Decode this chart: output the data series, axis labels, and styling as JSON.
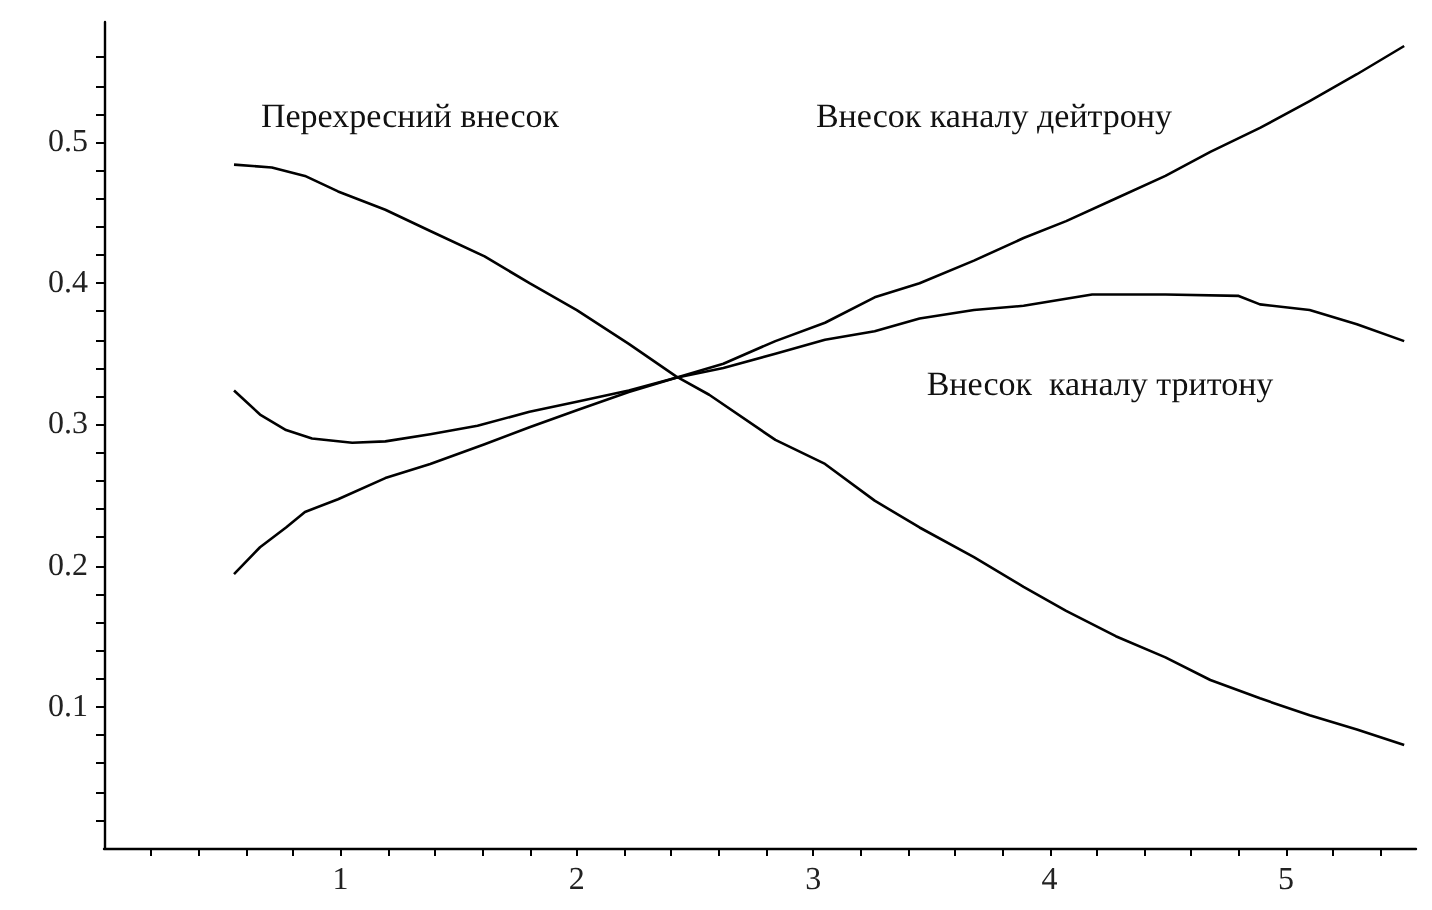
{
  "chart_data": {
    "type": "line",
    "xlim": [
      0,
      5.55
    ],
    "ylim": [
      0,
      0.585
    ],
    "xticks": [
      {
        "value": 0.2,
        "label": null
      },
      {
        "value": 0.4,
        "label": null
      },
      {
        "value": 0.6,
        "label": null
      },
      {
        "value": 0.8,
        "label": null
      },
      1,
      {
        "value": 1.2,
        "label": null
      },
      {
        "value": 1.4,
        "label": null
      },
      {
        "value": 1.6,
        "label": null
      },
      {
        "value": 1.8,
        "label": null
      },
      2,
      {
        "value": 2.2,
        "label": null
      },
      {
        "value": 2.4,
        "label": null
      },
      {
        "value": 2.6,
        "label": null
      },
      {
        "value": 2.8,
        "label": null
      },
      3,
      {
        "value": 3.2,
        "label": null
      },
      {
        "value": 3.4,
        "label": null
      },
      {
        "value": 3.6,
        "label": null
      },
      {
        "value": 3.8,
        "label": null
      },
      4,
      {
        "value": 4.2,
        "label": null
      },
      {
        "value": 4.4,
        "label": null
      },
      {
        "value": 4.6,
        "label": null
      },
      {
        "value": 4.8,
        "label": null
      },
      5,
      {
        "value": 5.2,
        "label": null
      },
      {
        "value": 5.4,
        "label": null
      }
    ],
    "yticks": [
      {
        "value": 0.02,
        "label": null
      },
      {
        "value": 0.04,
        "label": null
      },
      {
        "value": 0.06,
        "label": null
      },
      {
        "value": 0.08,
        "label": null
      },
      0.1,
      {
        "value": 0.12,
        "label": null
      },
      {
        "value": 0.14,
        "label": null
      },
      {
        "value": 0.16,
        "label": null
      },
      {
        "value": 0.18,
        "label": null
      },
      0.2,
      {
        "value": 0.22,
        "label": null
      },
      {
        "value": 0.24,
        "label": null
      },
      {
        "value": 0.26,
        "label": null
      },
      {
        "value": 0.28,
        "label": null
      },
      0.3,
      {
        "value": 0.32,
        "label": null
      },
      {
        "value": 0.34,
        "label": null
      },
      {
        "value": 0.36,
        "label": null
      },
      {
        "value": 0.38,
        "label": null
      },
      0.4,
      {
        "value": 0.42,
        "label": null
      },
      {
        "value": 0.44,
        "label": null
      },
      {
        "value": 0.46,
        "label": null
      },
      {
        "value": 0.48,
        "label": null
      },
      0.5,
      {
        "value": 0.52,
        "label": null
      },
      {
        "value": 0.54,
        "label": null
      },
      {
        "value": 0.56,
        "label": null
      }
    ],
    "line_style": "solid",
    "series": [
      {
        "color": "#000000",
        "x": [
          0.55,
          0.71,
          0.85,
          0.99,
          1.19,
          1.38,
          1.61,
          1.8,
          2.0,
          2.22,
          2.42,
          2.56,
          2.84,
          3.05,
          3.26,
          3.45,
          3.68,
          3.89,
          4.07,
          4.28,
          4.49,
          4.68,
          4.89,
          5.1,
          5.3,
          5.5
        ],
        "values": [
          0.484,
          0.482,
          0.476,
          0.465,
          0.452,
          0.437,
          0.419,
          0.4,
          0.381,
          0.357,
          0.334,
          0.321,
          0.289,
          0.272,
          0.246,
          0.227,
          0.206,
          0.185,
          0.168,
          0.15,
          0.135,
          0.119,
          0.106,
          0.094,
          0.084,
          0.073
        ]
      },
      {
        "color": "#000000",
        "x": [
          0.55,
          0.66,
          0.77,
          0.88,
          1.05,
          1.19,
          1.38,
          1.58,
          1.8,
          2.0,
          2.22,
          2.42,
          2.62,
          2.84,
          3.05,
          3.26,
          3.45,
          3.68,
          3.89,
          4.07,
          4.18,
          4.49,
          4.8,
          4.89,
          5.1,
          5.3,
          5.5
        ],
        "values": [
          0.324,
          0.307,
          0.296,
          0.29,
          0.287,
          0.288,
          0.293,
          0.299,
          0.309,
          0.316,
          0.324,
          0.333,
          0.34,
          0.35,
          0.36,
          0.366,
          0.375,
          0.381,
          0.384,
          0.389,
          0.392,
          0.392,
          0.391,
          0.385,
          0.381,
          0.371,
          0.359
        ]
      },
      {
        "color": "#000000",
        "x": [
          0.55,
          0.66,
          0.77,
          0.85,
          0.99,
          1.19,
          1.38,
          1.61,
          1.8,
          2.0,
          2.22,
          2.42,
          2.62,
          2.84,
          3.05,
          3.26,
          3.45,
          3.68,
          3.89,
          4.07,
          4.28,
          4.49,
          4.68,
          4.89,
          5.1,
          5.3,
          5.5
        ],
        "values": [
          0.194,
          0.213,
          0.227,
          0.238,
          0.247,
          0.262,
          0.272,
          0.286,
          0.298,
          0.31,
          0.323,
          0.333,
          0.343,
          0.359,
          0.372,
          0.39,
          0.4,
          0.416,
          0.432,
          0.444,
          0.46,
          0.476,
          0.493,
          0.51,
          0.529,
          0.548,
          0.568
        ]
      }
    ],
    "annotations": [
      "Перехресний внесок",
      "Внесок каналу дейтрону",
      "Внесок  каналу тритону"
    ]
  }
}
